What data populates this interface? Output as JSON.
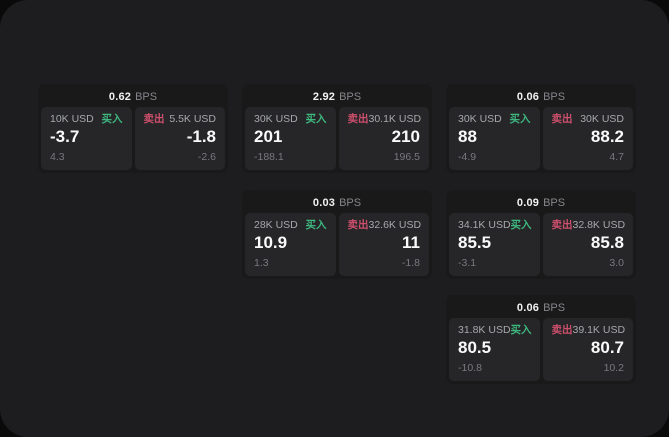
{
  "theme": {
    "outer_bg": "#0a0a0b",
    "page_bg": "#1d1d1f",
    "card_bg": "#19191a",
    "panel_bg": "#262629",
    "buy_color": "#3db77e",
    "sell_color": "#cc4f6c",
    "text_primary": "#fafafa",
    "text_secondary": "#a6a8ab",
    "text_muted": "#78797d"
  },
  "labels": {
    "buy": "买入",
    "sell": "卖出",
    "bps_unit": "BPS"
  },
  "cards": [
    {
      "bps": "0.62",
      "buy": {
        "size": "10K USD",
        "value": "-3.7",
        "sub": "4.3"
      },
      "sell": {
        "size": "5.5K USD",
        "value": "-1.8",
        "sub": "-2.6"
      }
    },
    {
      "bps": "2.92",
      "buy": {
        "size": "30K USD",
        "value": "201",
        "sub": "-188.1"
      },
      "sell": {
        "size": "30.1K USD",
        "value": "210",
        "sub": "196.5"
      }
    },
    {
      "bps": "0.06",
      "buy": {
        "size": "30K USD",
        "value": "88",
        "sub": "-4.9"
      },
      "sell": {
        "size": "30K USD",
        "value": "88.2",
        "sub": "4.7"
      }
    },
    {
      "bps": "0.03",
      "buy": {
        "size": "28K USD",
        "value": "10.9",
        "sub": "1.3"
      },
      "sell": {
        "size": "32.6K USD",
        "value": "11",
        "sub": "-1.8"
      }
    },
    {
      "bps": "0.09",
      "buy": {
        "size": "34.1K USD",
        "value": "85.5",
        "sub": "-3.1"
      },
      "sell": {
        "size": "32.8K USD",
        "value": "85.8",
        "sub": "3.0"
      }
    },
    {
      "bps": "0.06",
      "buy": {
        "size": "31.8K USD",
        "value": "80.5",
        "sub": "-10.8"
      },
      "sell": {
        "size": "39.1K USD",
        "value": "80.7",
        "sub": "10.2"
      }
    }
  ]
}
